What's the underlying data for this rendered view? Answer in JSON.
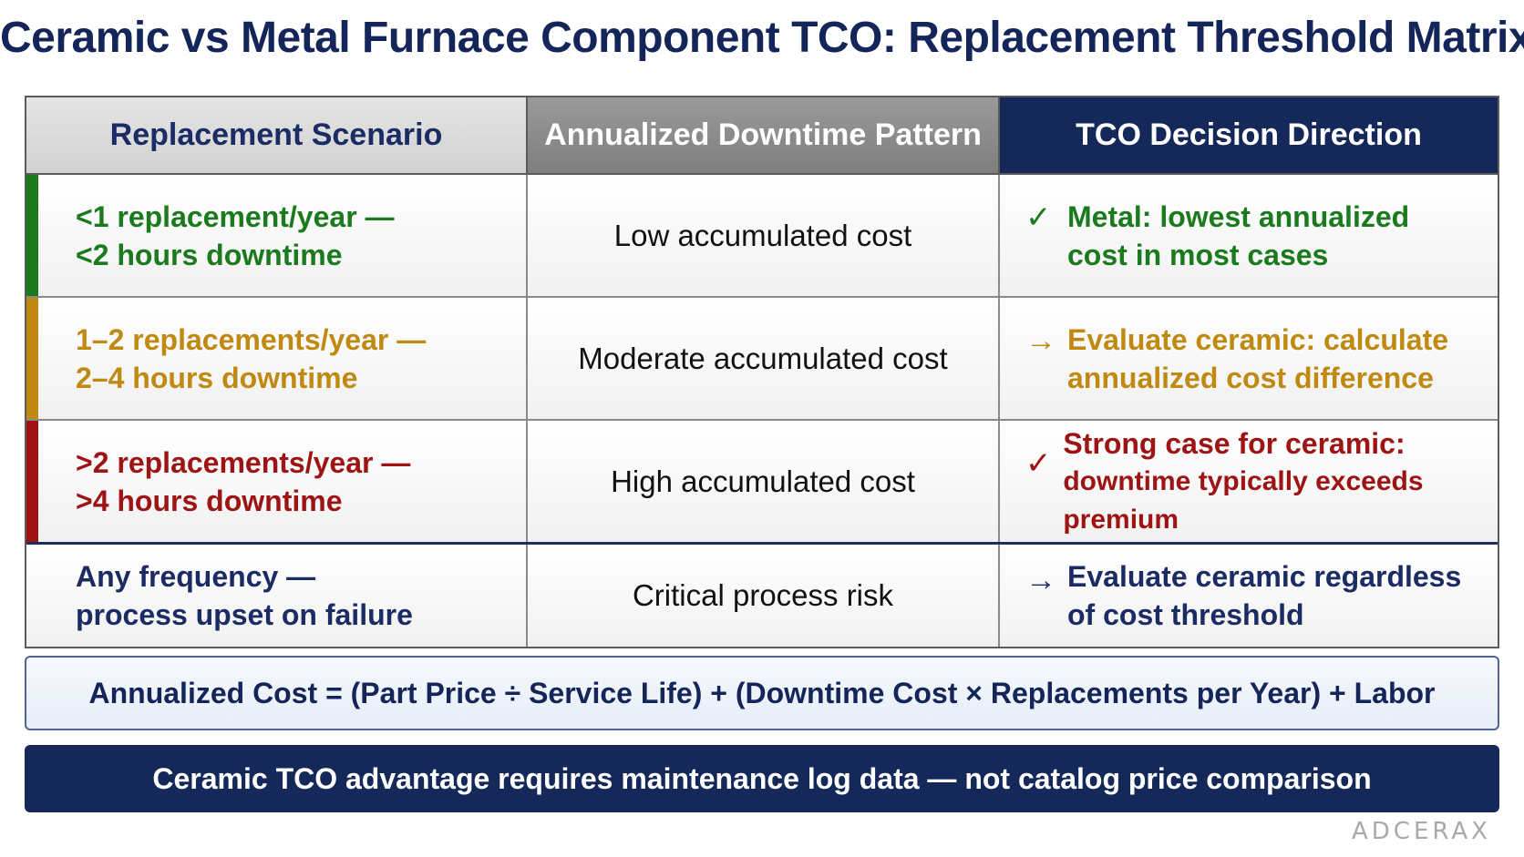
{
  "title": "Ceramic vs Metal Furnace Component TCO: Replacement Threshold Matrix",
  "colors": {
    "navy": "#14285a",
    "green": "#1b7a1e",
    "amber": "#c08a12",
    "red": "#9e1414",
    "header_gray_light": "#d2d2d2",
    "header_gray_dark": "#7e7e7e"
  },
  "table": {
    "headers": [
      "Replacement Scenario",
      "Annualized Downtime Pattern",
      "TCO Decision Direction"
    ],
    "rows": [
      {
        "color": "green",
        "scenario_line1": "<1 replacement/year —",
        "scenario_line2": "<2 hours downtime",
        "pattern": "Low accumulated cost",
        "symbol": "✓",
        "symbol_icon": "check-icon",
        "decision_line1": "Metal: lowest annualized",
        "decision_line2": "cost in most cases"
      },
      {
        "color": "amber",
        "scenario_line1": "1–2 replacements/year —",
        "scenario_line2": "2–4 hours downtime",
        "pattern": "Moderate accumulated cost",
        "symbol": "→",
        "symbol_icon": "arrow-right-icon",
        "decision_line1": "Evaluate ceramic: calculate",
        "decision_line2": "annualized cost difference"
      },
      {
        "color": "red",
        "scenario_line1": ">2 replacements/year —",
        "scenario_line2": ">4 hours downtime",
        "pattern": "High accumulated cost",
        "symbol": "✓",
        "symbol_icon": "check-icon",
        "decision_line1": "Strong case for ceramic:",
        "decision_line2": "downtime typically exceeds premium"
      },
      {
        "color": "navy",
        "scenario_line1": "Any frequency —",
        "scenario_line2": "process upset on failure",
        "pattern": "Critical process risk",
        "symbol": "→",
        "symbol_icon": "arrow-right-icon",
        "decision_line1": "Evaluate ceramic regardless",
        "decision_line2": "of cost threshold"
      }
    ]
  },
  "formula": "Annualized Cost = (Part Price ÷ Service Life) + (Downtime Cost × Replacements per Year) + Labor",
  "banner": "Ceramic TCO advantage requires maintenance log data — not catalog price comparison",
  "brand": "ADCERAX"
}
